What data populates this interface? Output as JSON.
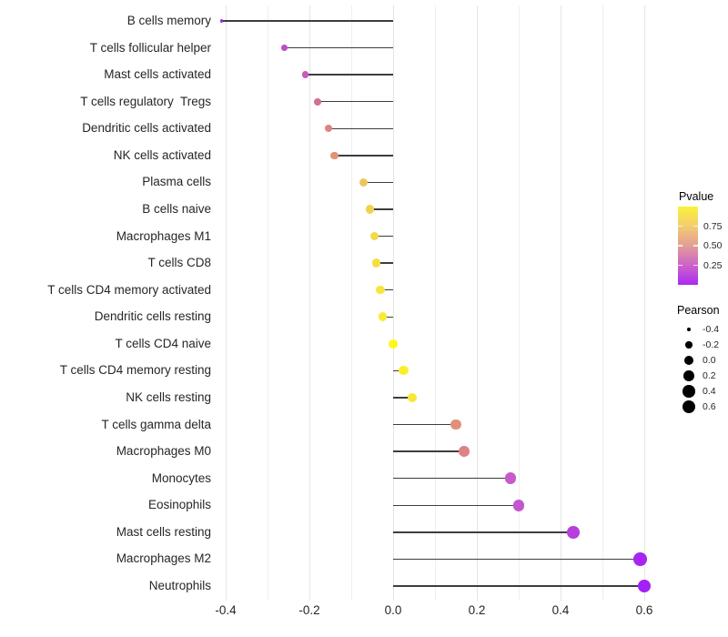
{
  "chart_data": {
    "type": "scatter",
    "variant": "lollipop",
    "title": "",
    "xlabel": "",
    "ylabel": "",
    "xlim": [
      -0.46,
      0.65
    ],
    "grid": "vertical-only",
    "x_ticks": [
      {
        "label": "-0.4",
        "value": -0.4
      },
      {
        "label": "-0.2",
        "value": -0.2
      },
      {
        "label": "0.0",
        "value": 0.0
      },
      {
        "label": "0.2",
        "value": 0.2
      },
      {
        "label": "0.4",
        "value": 0.4
      },
      {
        "label": "0.6",
        "value": 0.6
      }
    ],
    "gridline_values": [
      -0.4,
      -0.3,
      -0.2,
      -0.1,
      0.0,
      0.1,
      0.2,
      0.3,
      0.4,
      0.5,
      0.6
    ],
    "rows": [
      {
        "label": "B cells memory",
        "pearson": -0.41,
        "pvalue": 0.04,
        "color": "#9B2BE5"
      },
      {
        "label": "T cells follicular helper",
        "pearson": -0.26,
        "pvalue": 0.17,
        "color": "#BE4EC5"
      },
      {
        "label": "Mast cells activated",
        "pearson": -0.21,
        "pvalue": 0.25,
        "color": "#C75CB6"
      },
      {
        "label": "T cells regulatory  Tregs",
        "pearson": -0.18,
        "pvalue": 0.33,
        "color": "#D2708F"
      },
      {
        "label": "Dendritic cells activated",
        "pearson": -0.155,
        "pvalue": 0.44,
        "color": "#DE837E"
      },
      {
        "label": "NK cells activated",
        "pearson": -0.14,
        "pvalue": 0.5,
        "color": "#E49273"
      },
      {
        "label": "Plasma cells",
        "pearson": -0.07,
        "pvalue": 0.7,
        "color": "#EEC45E"
      },
      {
        "label": "B cells naive",
        "pearson": -0.055,
        "pvalue": 0.75,
        "color": "#F2D24C"
      },
      {
        "label": "Macrophages M1",
        "pearson": -0.045,
        "pvalue": 0.78,
        "color": "#F4D946"
      },
      {
        "label": "T cells CD8",
        "pearson": -0.04,
        "pvalue": 0.8,
        "color": "#F6DE40"
      },
      {
        "label": "T cells CD4 memory activated",
        "pearson": -0.03,
        "pvalue": 0.83,
        "color": "#F8E43A"
      },
      {
        "label": "Dendritic cells resting",
        "pearson": -0.025,
        "pvalue": 0.86,
        "color": "#FAEA32"
      },
      {
        "label": "T cells CD4 naive",
        "pearson": 0.0,
        "pvalue": 0.97,
        "color": "#FEF71B"
      },
      {
        "label": "T cells CD4 memory resting",
        "pearson": 0.025,
        "pvalue": 0.9,
        "color": "#FBEF2B"
      },
      {
        "label": "NK cells resting",
        "pearson": 0.045,
        "pvalue": 0.84,
        "color": "#F9E636"
      },
      {
        "label": "T cells gamma delta",
        "pearson": 0.15,
        "pvalue": 0.48,
        "color": "#E28F7A"
      },
      {
        "label": "Macrophages M0",
        "pearson": 0.17,
        "pvalue": 0.44,
        "color": "#DE8288"
      },
      {
        "label": "Monocytes",
        "pearson": 0.28,
        "pvalue": 0.21,
        "color": "#C75ACD"
      },
      {
        "label": "Eosinophils",
        "pearson": 0.3,
        "pvalue": 0.19,
        "color": "#C355CE"
      },
      {
        "label": "Mast cells resting",
        "pearson": 0.43,
        "pvalue": 0.1,
        "color": "#B83EDE"
      },
      {
        "label": "Macrophages M2",
        "pearson": 0.59,
        "pvalue": 0.03,
        "color": "#A724F2"
      },
      {
        "label": "Neutrophils",
        "pearson": 0.6,
        "pvalue": 0.02,
        "color": "#A321F4"
      }
    ],
    "legends": {
      "pvalue": {
        "title": "Pvalue",
        "ticks": [
          {
            "label": "0.75",
            "value": 0.75
          },
          {
            "label": "0.50",
            "value": 0.5
          },
          {
            "label": "0.25",
            "value": 0.25
          }
        ],
        "gradient_bottom_to_top": [
          "#AC29F2",
          "#CC63C8",
          "#E39D96",
          "#F3CC70",
          "#FAF239"
        ]
      },
      "pearson": {
        "title": "Pearson",
        "dot_color": "#000000",
        "items": [
          {
            "label": "-0.4",
            "value": -0.4
          },
          {
            "label": "-0.2",
            "value": -0.2
          },
          {
            "label": "0.0",
            "value": 0.0
          },
          {
            "label": "0.2",
            "value": 0.2
          },
          {
            "label": "0.4",
            "value": 0.4
          },
          {
            "label": "0.6",
            "value": 0.6
          }
        ]
      }
    }
  }
}
